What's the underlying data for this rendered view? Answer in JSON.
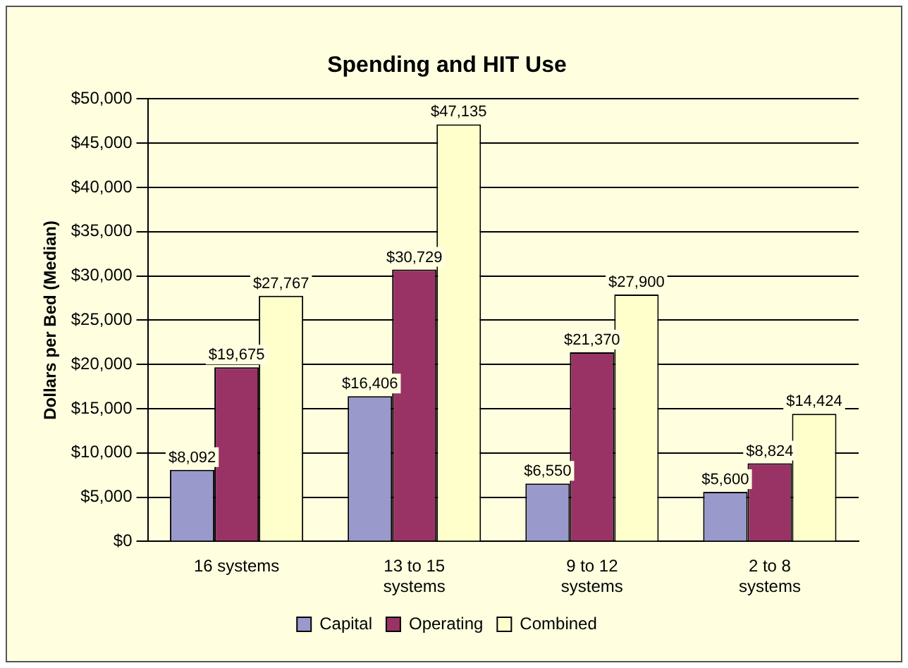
{
  "chart_data": {
    "type": "bar",
    "title": "Spending and HIT Use",
    "ylabel": "Dollars per Bed (Median)",
    "categories": [
      "16 systems",
      "13 to 15 systems",
      "9 to 12 systems",
      "2 to 8 systems"
    ],
    "series": [
      {
        "name": "Capital",
        "color": "#9999cc",
        "values": [
          8092,
          16406,
          6550,
          5600
        ],
        "value_labels": [
          "$8,092",
          "$16,406",
          "$6,550",
          "$5,600"
        ]
      },
      {
        "name": "Operating",
        "color": "#993366",
        "values": [
          19675,
          30729,
          21370,
          8824
        ],
        "value_labels": [
          "$19,675",
          "$30,729",
          "$21,370",
          "$8,824"
        ]
      },
      {
        "name": "Combined",
        "color": "#ffffcc",
        "values": [
          27767,
          47135,
          27900,
          14424
        ],
        "value_labels": [
          "$27,767",
          "$47,135",
          "$27,900",
          "$14,424"
        ]
      }
    ],
    "ylim": [
      0,
      50000
    ],
    "yticks": [
      {
        "value": 0,
        "label": "$0"
      },
      {
        "value": 5000,
        "label": "$5,000"
      },
      {
        "value": 10000,
        "label": "$10,000"
      },
      {
        "value": 15000,
        "label": "$15,000"
      },
      {
        "value": 20000,
        "label": "$20,000"
      },
      {
        "value": 25000,
        "label": "$25,000"
      },
      {
        "value": 30000,
        "label": "$30,000"
      },
      {
        "value": 35000,
        "label": "$35,000"
      },
      {
        "value": 40000,
        "label": "$40,000"
      },
      {
        "value": 45000,
        "label": "$45,000"
      },
      {
        "value": 50000,
        "label": "$50,000"
      }
    ],
    "grid": "y",
    "legend": "bottom"
  }
}
